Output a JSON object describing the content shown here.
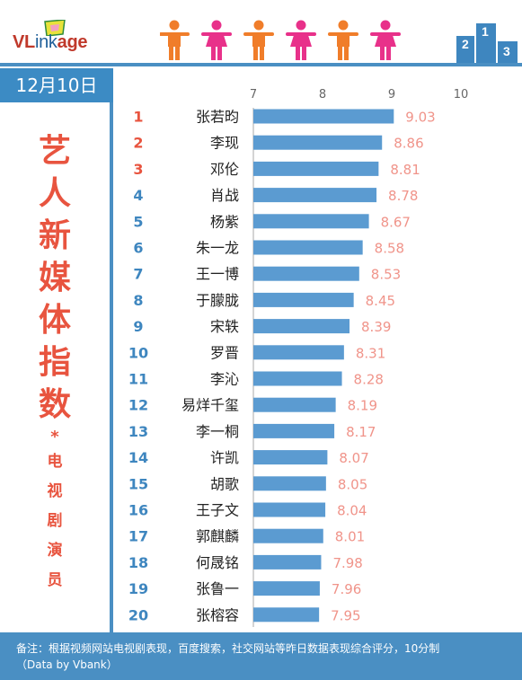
{
  "brand": {
    "name_prefix": "VL",
    "name_mid": "ink",
    "name_suffix": "age"
  },
  "date": "12月10日",
  "title": {
    "chars": [
      "艺",
      "人",
      "新",
      "媒",
      "体",
      "指",
      "数"
    ],
    "star": "*",
    "sub_chars": [
      "电",
      "视",
      "剧",
      "演",
      "员"
    ]
  },
  "footer": {
    "note": "备注：根据视频网站电视剧表现，百度搜索，社交网站等昨日数据表现综合评分，10分制",
    "credit": "（Data by Vbank）"
  },
  "colors": {
    "bar": "#5b9bd1",
    "rank_top": "#e8543f",
    "rank": "#3e86bf",
    "value": "#f0948a",
    "accent": "#4a8fc3",
    "male": "#f07d2a",
    "female": "#e8318a"
  },
  "icons": [
    "male-figure-icon",
    "female-figure-icon",
    "male-figure-icon",
    "female-figure-icon",
    "male-figure-icon",
    "female-figure-icon",
    "podium-icon"
  ],
  "chart_data": {
    "type": "bar",
    "orientation": "horizontal",
    "xlim": [
      7,
      10
    ],
    "xticks": [
      "7",
      "8",
      "9",
      "10"
    ],
    "grid": false,
    "ranks": [
      "1",
      "2",
      "3",
      "4",
      "5",
      "6",
      "7",
      "8",
      "9",
      "10",
      "11",
      "12",
      "13",
      "14",
      "15",
      "16",
      "17",
      "18",
      "19",
      "20"
    ],
    "categories": [
      "张若昀",
      "李现",
      "邓伦",
      "肖战",
      "杨紫",
      "朱一龙",
      "王一博",
      "于朦胧",
      "宋轶",
      "罗晋",
      "李沁",
      "易烊千玺",
      "李一桐",
      "许凯",
      "胡歌",
      "王子文",
      "郭麒麟",
      "何晟铭",
      "张鲁一",
      "张榕容"
    ],
    "values": [
      9.03,
      8.86,
      8.81,
      8.78,
      8.67,
      8.58,
      8.53,
      8.45,
      8.39,
      8.31,
      8.28,
      8.19,
      8.17,
      8.07,
      8.05,
      8.04,
      8.01,
      7.98,
      7.96,
      7.95
    ],
    "value_labels": [
      "9.03",
      "8.86",
      "8.81",
      "8.78",
      "8.67",
      "8.58",
      "8.53",
      "8.45",
      "8.39",
      "8.31",
      "8.28",
      "8.19",
      "8.17",
      "8.07",
      "8.05",
      "8.04",
      "8.01",
      "7.98",
      "7.96",
      "7.95"
    ]
  }
}
